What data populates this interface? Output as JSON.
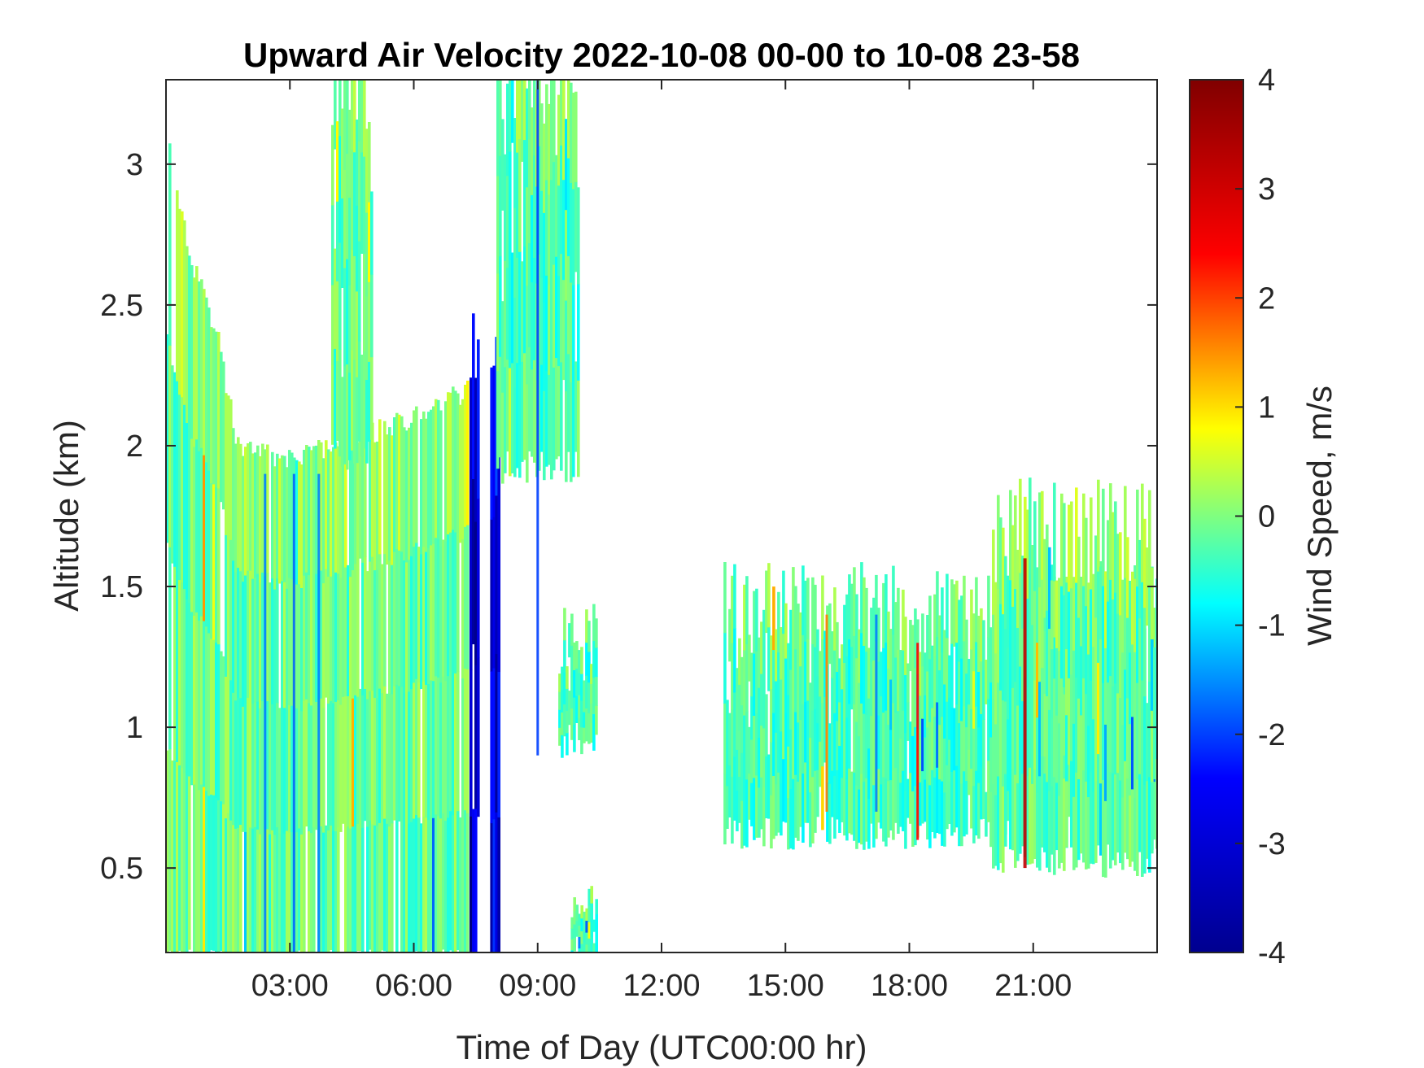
{
  "chart_data": {
    "type": "heatmap",
    "title": "Upward Air Velocity 2022-10-08 00-00 to 10-08 23-58",
    "xlabel": "Time of Day (UTC00:00 hr)",
    "ylabel": "Altitude (km)",
    "xlim": [
      0,
      24
    ],
    "ylim": [
      0.2,
      3.3
    ],
    "x_ticks": [
      3,
      6,
      9,
      12,
      15,
      18,
      21
    ],
    "x_tick_labels": [
      "03:00",
      "06:00",
      "09:00",
      "12:00",
      "15:00",
      "18:00",
      "21:00"
    ],
    "y_ticks": [
      0.5,
      1,
      1.5,
      2,
      2.5,
      3
    ],
    "y_tick_labels": [
      "0.5",
      "1",
      "1.5",
      "2",
      "2.5",
      "3"
    ],
    "colorbar": {
      "label": "Wind Speed, m/s",
      "clim": [
        -4,
        4
      ],
      "ticks": [
        4,
        3,
        2,
        1,
        0,
        -1,
        -2,
        -3,
        -4
      ],
      "tick_labels": [
        "4",
        "3",
        "2",
        "1",
        "0",
        "-1",
        "-2",
        "-3",
        "-4"
      ],
      "colormap": "jet",
      "stops": [
        "#00008f",
        "#0000ff",
        "#00ffff",
        "#ffff00",
        "#ff0000",
        "#800000"
      ]
    },
    "regions": [
      {
        "name": "early-boundary-layer",
        "x_range": [
          0.0,
          7.3
        ],
        "y_range": [
          0.2,
          2.0
        ],
        "typical_value": -0.2,
        "top_profile": [
          [
            0.0,
            3.1
          ],
          [
            0.5,
            2.7
          ],
          [
            1.2,
            2.4
          ],
          [
            1.7,
            2.0
          ],
          [
            3.0,
            1.95
          ],
          [
            6.0,
            2.1
          ],
          [
            7.3,
            2.2
          ]
        ]
      },
      {
        "name": "upper-plume-03-05",
        "x_range": [
          4.0,
          5.0
        ],
        "y_range": [
          2.0,
          3.3
        ],
        "typical_value": -0.3
      },
      {
        "name": "strong-downdraft-07",
        "x_range": [
          7.35,
          7.55
        ],
        "y_range": [
          0.2,
          2.4
        ],
        "typical_value": -3.5
      },
      {
        "name": "strong-downdraft-08",
        "x_range": [
          7.85,
          8.05
        ],
        "y_range": [
          0.2,
          2.3
        ],
        "typical_value": -3.2
      },
      {
        "name": "rising-layer-08-10",
        "x_range": [
          8.0,
          10.0
        ],
        "y_range": [
          1.95,
          3.3
        ],
        "typical_value": -0.4
      },
      {
        "name": "cloud-patch-10",
        "x_range": [
          9.5,
          10.4
        ],
        "y_range": [
          0.95,
          1.3
        ],
        "typical_value": -0.5
      },
      {
        "name": "surface-patch-10",
        "x_range": [
          9.8,
          10.4
        ],
        "y_range": [
          0.2,
          0.4
        ],
        "typical_value": -0.5
      },
      {
        "name": "afternoon-layer",
        "x_range": [
          13.5,
          24.0
        ],
        "y_range": [
          0.65,
          1.4
        ],
        "typical_value": -0.5
      },
      {
        "name": "evening-layer",
        "x_range": [
          20.0,
          24.0
        ],
        "y_range": [
          0.55,
          1.7
        ],
        "typical_value": -0.3
      }
    ],
    "vertical_streaks": [
      {
        "x": 2.4,
        "y_range": [
          0.2,
          1.9
        ],
        "value": -2.0
      },
      {
        "x": 3.1,
        "y_range": [
          0.2,
          1.9
        ],
        "value": -2.2
      },
      {
        "x": 3.7,
        "y_range": [
          0.2,
          1.9
        ],
        "value": -2.0
      },
      {
        "x": 16.0,
        "y_range": [
          0.7,
          1.4
        ],
        "value": 2.0
      },
      {
        "x": 17.2,
        "y_range": [
          0.7,
          1.4
        ],
        "value": -2.0
      },
      {
        "x": 18.2,
        "y_range": [
          0.6,
          1.3
        ],
        "value": 3.0
      },
      {
        "x": 20.8,
        "y_range": [
          0.5,
          1.6
        ],
        "value": 3.5
      },
      {
        "x": 9.0,
        "y_range": [
          0.9,
          3.3
        ],
        "value": -2.5
      }
    ]
  }
}
